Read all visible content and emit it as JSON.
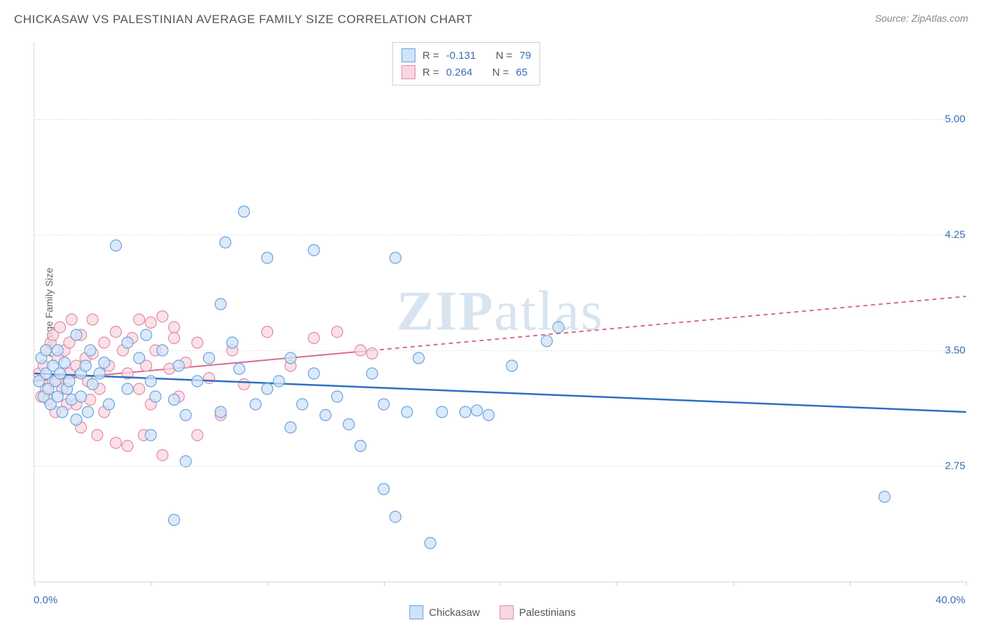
{
  "title": "CHICKASAW VS PALESTINIAN AVERAGE FAMILY SIZE CORRELATION CHART",
  "source": "Source: ZipAtlas.com",
  "y_axis_label": "Average Family Size",
  "watermark": {
    "bold": "ZIP",
    "light": "atlas"
  },
  "chart": {
    "type": "scatter",
    "xlim": [
      0,
      40
    ],
    "ylim": [
      2.0,
      5.5
    ],
    "y_ticks": [
      2.75,
      3.5,
      4.25,
      5.0
    ],
    "y_tick_labels": [
      "2.75",
      "3.50",
      "4.25",
      "5.00"
    ],
    "x_min_label": "0.0%",
    "x_max_label": "40.0%",
    "x_tick_positions": [
      0,
      5,
      10,
      15,
      20,
      25,
      30,
      35,
      40
    ],
    "grid_color": "#e4e4e4",
    "background": "#ffffff",
    "marker_radius": 8,
    "marker_stroke_width": 1.2,
    "series": {
      "chickasaw": {
        "label": "Chickasaw",
        "color_fill": "#cfe2f7",
        "color_stroke": "#6aa3dc",
        "trend_color": "#2f6fc1",
        "trend_width": 2.5,
        "trend_dash_after_x": null,
        "R": "-0.131",
        "N": "79",
        "trend_y_at_x0": 3.35,
        "trend_y_at_x40": 3.1,
        "points": [
          [
            0.2,
            3.3
          ],
          [
            0.3,
            3.45
          ],
          [
            0.4,
            3.2
          ],
          [
            0.5,
            3.35
          ],
          [
            0.5,
            3.5
          ],
          [
            0.6,
            3.25
          ],
          [
            0.7,
            3.15
          ],
          [
            0.8,
            3.4
          ],
          [
            0.9,
            3.3
          ],
          [
            1.0,
            3.2
          ],
          [
            1.0,
            3.5
          ],
          [
            1.1,
            3.35
          ],
          [
            1.2,
            3.1
          ],
          [
            1.3,
            3.42
          ],
          [
            1.4,
            3.25
          ],
          [
            1.5,
            3.3
          ],
          [
            1.6,
            3.18
          ],
          [
            1.8,
            3.05
          ],
          [
            1.8,
            3.6
          ],
          [
            2.0,
            3.35
          ],
          [
            2.0,
            3.2
          ],
          [
            2.2,
            3.4
          ],
          [
            2.3,
            3.1
          ],
          [
            2.4,
            3.5
          ],
          [
            2.5,
            3.28
          ],
          [
            2.8,
            3.35
          ],
          [
            3.0,
            3.42
          ],
          [
            3.2,
            3.15
          ],
          [
            3.5,
            4.18
          ],
          [
            4.0,
            3.25
          ],
          [
            4.0,
            3.55
          ],
          [
            4.5,
            3.45
          ],
          [
            4.8,
            3.6
          ],
          [
            5.0,
            3.3
          ],
          [
            5.0,
            2.95
          ],
          [
            5.2,
            3.2
          ],
          [
            5.5,
            3.5
          ],
          [
            6.0,
            2.4
          ],
          [
            6.0,
            3.18
          ],
          [
            6.2,
            3.4
          ],
          [
            6.5,
            3.08
          ],
          [
            6.5,
            2.78
          ],
          [
            7.0,
            3.3
          ],
          [
            7.5,
            3.45
          ],
          [
            8.0,
            3.1
          ],
          [
            8.0,
            3.8
          ],
          [
            8.2,
            4.2
          ],
          [
            8.5,
            3.55
          ],
          [
            8.8,
            3.38
          ],
          [
            9.0,
            4.4
          ],
          [
            9.5,
            3.15
          ],
          [
            10.0,
            3.25
          ],
          [
            10.0,
            4.1
          ],
          [
            10.5,
            3.3
          ],
          [
            11.0,
            3.45
          ],
          [
            11.0,
            3.0
          ],
          [
            11.5,
            3.15
          ],
          [
            12.0,
            3.35
          ],
          [
            12.0,
            4.15
          ],
          [
            12.5,
            3.08
          ],
          [
            13.0,
            3.2
          ],
          [
            13.5,
            3.02
          ],
          [
            14.0,
            2.88
          ],
          [
            14.5,
            3.35
          ],
          [
            15.0,
            3.15
          ],
          [
            15.0,
            2.6
          ],
          [
            15.5,
            2.42
          ],
          [
            15.5,
            4.1
          ],
          [
            16.0,
            3.1
          ],
          [
            16.5,
            3.45
          ],
          [
            17.0,
            2.25
          ],
          [
            17.5,
            3.1
          ],
          [
            18.5,
            3.1
          ],
          [
            19.0,
            3.11
          ],
          [
            19.5,
            3.08
          ],
          [
            20.5,
            3.4
          ],
          [
            22.0,
            3.56
          ],
          [
            22.5,
            3.65
          ],
          [
            36.5,
            2.55
          ]
        ]
      },
      "palestinians": {
        "label": "Palestinians",
        "color_fill": "#f8d7e0",
        "color_stroke": "#e48aa3",
        "trend_color": "#de6b8c",
        "trend_width": 2,
        "trend_dash_after_x": 14.5,
        "R": "0.264",
        "N": "65",
        "trend_y_at_x0": 3.3,
        "trend_y_at_x40": 3.85,
        "points": [
          [
            0.2,
            3.35
          ],
          [
            0.3,
            3.2
          ],
          [
            0.4,
            3.4
          ],
          [
            0.5,
            3.5
          ],
          [
            0.5,
            3.25
          ],
          [
            0.6,
            3.18
          ],
          [
            0.7,
            3.55
          ],
          [
            0.8,
            3.3
          ],
          [
            0.8,
            3.6
          ],
          [
            0.9,
            3.1
          ],
          [
            1.0,
            3.45
          ],
          [
            1.0,
            3.3
          ],
          [
            1.1,
            3.65
          ],
          [
            1.2,
            3.25
          ],
          [
            1.3,
            3.5
          ],
          [
            1.4,
            3.15
          ],
          [
            1.5,
            3.35
          ],
          [
            1.5,
            3.55
          ],
          [
            1.6,
            3.7
          ],
          [
            1.8,
            3.4
          ],
          [
            1.8,
            3.15
          ],
          [
            2.0,
            3.6
          ],
          [
            2.0,
            3.0
          ],
          [
            2.2,
            3.45
          ],
          [
            2.3,
            3.3
          ],
          [
            2.4,
            3.18
          ],
          [
            2.5,
            3.7
          ],
          [
            2.5,
            3.48
          ],
          [
            2.7,
            2.95
          ],
          [
            2.8,
            3.25
          ],
          [
            3.0,
            3.55
          ],
          [
            3.0,
            3.1
          ],
          [
            3.2,
            3.4
          ],
          [
            3.5,
            2.9
          ],
          [
            3.5,
            3.62
          ],
          [
            3.8,
            3.5
          ],
          [
            4.0,
            3.35
          ],
          [
            4.0,
            2.88
          ],
          [
            4.2,
            3.58
          ],
          [
            4.5,
            3.25
          ],
          [
            4.5,
            3.7
          ],
          [
            4.7,
            2.95
          ],
          [
            4.8,
            3.4
          ],
          [
            5.0,
            3.15
          ],
          [
            5.0,
            3.68
          ],
          [
            5.2,
            3.5
          ],
          [
            5.5,
            2.82
          ],
          [
            5.5,
            3.72
          ],
          [
            5.8,
            3.38
          ],
          [
            6.0,
            3.65
          ],
          [
            6.0,
            3.58
          ],
          [
            6.2,
            3.2
          ],
          [
            6.5,
            3.42
          ],
          [
            7.0,
            3.55
          ],
          [
            7.0,
            2.95
          ],
          [
            7.5,
            3.32
          ],
          [
            8.0,
            3.08
          ],
          [
            8.5,
            3.5
          ],
          [
            9.0,
            3.28
          ],
          [
            10.0,
            3.62
          ],
          [
            11.0,
            3.4
          ],
          [
            12.0,
            3.58
          ],
          [
            13.0,
            3.62
          ],
          [
            14.0,
            3.5
          ],
          [
            14.5,
            3.48
          ]
        ]
      }
    }
  },
  "stats_labels": {
    "R": "R =",
    "N": "N ="
  },
  "legend_series": [
    "chickasaw",
    "palestinians"
  ]
}
